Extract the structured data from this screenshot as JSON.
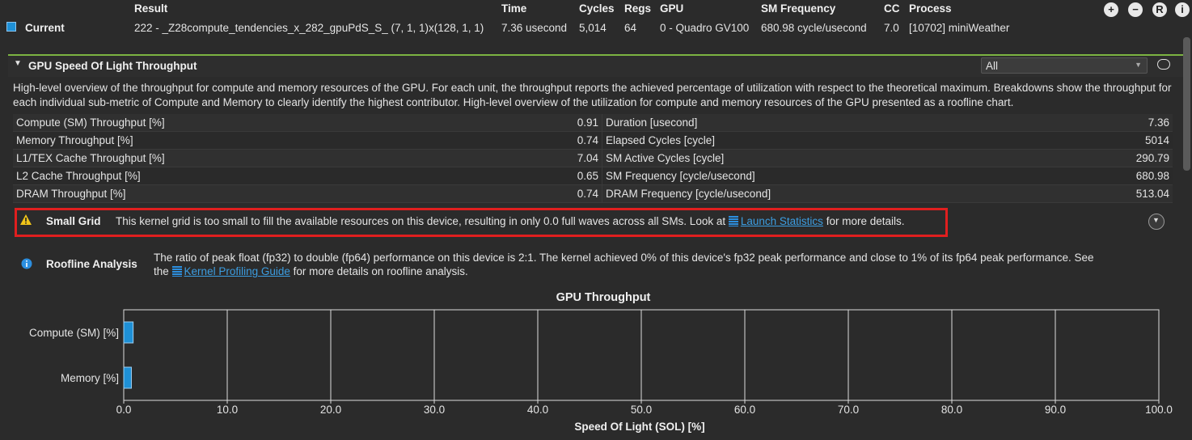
{
  "header": {
    "columns": {
      "result": "Result",
      "time": "Time",
      "cycles": "Cycles",
      "regs": "Regs",
      "gpu": "GPU",
      "sm_frequency": "SM Frequency",
      "cc": "CC",
      "process": "Process"
    },
    "row": {
      "label": "Current",
      "label_color": "#1e90d6",
      "result": "222 - _Z28compute_tendencies_x_282_gpuPdS_S_ (7, 1, 1)x(128, 1, 1)",
      "time": "7.36 usecond",
      "cycles": "5,014",
      "regs": "64",
      "gpu": "0 - Quadro GV100",
      "sm_frequency": "680.98 cycle/usecond",
      "cc": "7.0",
      "process": "[10702] miniWeather"
    },
    "buttons": [
      {
        "icon": "plus-circle-icon",
        "glyph": "+"
      },
      {
        "icon": "minus-circle-icon",
        "glyph": "−"
      },
      {
        "icon": "r-circle-icon",
        "glyph": "R"
      },
      {
        "icon": "info-circle-icon",
        "glyph": "i"
      }
    ]
  },
  "section": {
    "title": "GPU Speed Of Light Throughput",
    "filter_value": "All",
    "accent_color": "#7cb342",
    "description": "High-level overview of the throughput for compute and memory resources of the GPU. For each unit, the throughput reports the achieved percentage of utilization with respect to the theoretical maximum. Breakdowns show the throughput for each individual sub-metric of Compute and Memory to clearly identify the highest contributor. High-level overview of the utilization for compute and memory resources of the GPU presented as a roofline chart."
  },
  "metrics": {
    "left": [
      {
        "name": "Compute (SM) Throughput [%]",
        "value": "0.91"
      },
      {
        "name": "Memory Throughput [%]",
        "value": "0.74"
      },
      {
        "name": "L1/TEX Cache Throughput [%]",
        "value": "7.04"
      },
      {
        "name": "L2 Cache Throughput [%]",
        "value": "0.65"
      },
      {
        "name": "DRAM Throughput [%]",
        "value": "0.74"
      }
    ],
    "right": [
      {
        "name": "Duration [usecond]",
        "value": "7.36"
      },
      {
        "name": "Elapsed Cycles [cycle]",
        "value": "5014"
      },
      {
        "name": "SM Active Cycles [cycle]",
        "value": "290.79"
      },
      {
        "name": "SM Frequency [cycle/usecond]",
        "value": "680.98"
      },
      {
        "name": "DRAM Frequency [cycle/usecond]",
        "value": "513.04"
      }
    ]
  },
  "rules": {
    "small_grid": {
      "title": "Small Grid",
      "text_before": "This kernel grid is too small to fill the available resources on this device, resulting in only 0.0 full waves across all SMs. Look at",
      "link": "Launch Statistics",
      "text_after": "for more details.",
      "icon": "warning-icon",
      "highlight_color": "#e01f1f"
    },
    "roofline": {
      "title": "Roofline Analysis",
      "line1": "The ratio of peak float (fp32) to double (fp64) performance on this device is 2:1. The kernel achieved 0% of this device's fp32 peak performance and close to 1% of its fp64 peak performance. See",
      "the": "the",
      "link": "Kernel Profiling Guide",
      "text_after": "for more details on roofline analysis.",
      "icon": "info-icon"
    }
  },
  "chart_data": {
    "type": "bar",
    "orientation": "horizontal",
    "title": "GPU Throughput",
    "xlabel": "Speed Of Light (SOL) [%]",
    "ylabel": "",
    "categories": [
      "Compute (SM) [%]",
      "Memory [%]"
    ],
    "values": [
      0.91,
      0.74
    ],
    "xlim": [
      0,
      100
    ],
    "xticks": [
      "0.0",
      "10.0",
      "20.0",
      "30.0",
      "40.0",
      "50.0",
      "60.0",
      "70.0",
      "80.0",
      "90.0",
      "100.0"
    ],
    "grid": true,
    "bar_color": "#1e90d6"
  }
}
